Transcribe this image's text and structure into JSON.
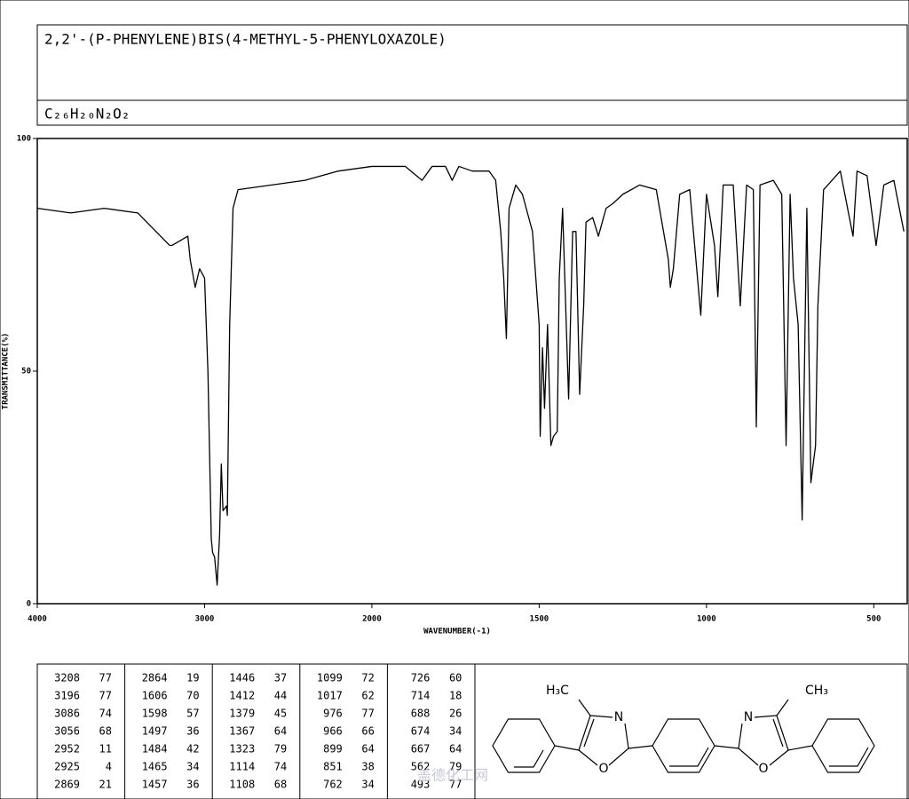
{
  "chart_data": {
    "type": "line",
    "title": "2,2'-(P-PHENYLENE)BIS(4-METHYL-5-PHENYLOXAZOLE)",
    "subtitle": "C₂₆H₂₀N₂O₂",
    "x_label": "WAVENUMBER(-1)",
    "y_label": "TRANSMITTANCE(%)",
    "x": [
      4000,
      3800,
      3600,
      3400,
      3208,
      3196,
      3100,
      3086,
      3056,
      3030,
      3000,
      2980,
      2960,
      2952,
      2940,
      2925,
      2910,
      2900,
      2890,
      2869,
      2864,
      2850,
      2830,
      2800,
      2600,
      2400,
      2200,
      2000,
      1900,
      1850,
      1820,
      1780,
      1760,
      1740,
      1700,
      1650,
      1630,
      1615,
      1606,
      1598,
      1590,
      1570,
      1550,
      1520,
      1500,
      1497,
      1490,
      1484,
      1475,
      1465,
      1457,
      1446,
      1440,
      1430,
      1412,
      1400,
      1390,
      1379,
      1367,
      1360,
      1340,
      1323,
      1300,
      1280,
      1250,
      1200,
      1150,
      1114,
      1108,
      1099,
      1080,
      1050,
      1017,
      1000,
      976,
      966,
      950,
      920,
      899,
      880,
      860,
      851,
      840,
      800,
      775,
      762,
      750,
      740,
      726,
      714,
      700,
      688,
      674,
      667,
      650,
      600,
      562,
      550,
      520,
      493,
      470,
      440,
      410
    ],
    "values": [
      85,
      84,
      85,
      84,
      77,
      77,
      79,
      74,
      68,
      72,
      70,
      50,
      14,
      11,
      10,
      4,
      15,
      30,
      20,
      21,
      19,
      60,
      85,
      89,
      90,
      91,
      93,
      94,
      94,
      91,
      94,
      94,
      91,
      94,
      93,
      93,
      91,
      80,
      70,
      57,
      85,
      90,
      88,
      80,
      60,
      36,
      55,
      42,
      60,
      34,
      36,
      37,
      70,
      85,
      44,
      80,
      80,
      45,
      64,
      82,
      83,
      79,
      85,
      86,
      88,
      90,
      89,
      74,
      68,
      72,
      88,
      89,
      62,
      88,
      77,
      66,
      90,
      90,
      64,
      90,
      89,
      38,
      90,
      91,
      88,
      34,
      88,
      70,
      60,
      18,
      85,
      26,
      34,
      64,
      89,
      93,
      79,
      93,
      92,
      77,
      90,
      91,
      80
    ],
    "color": "#000000",
    "xlim": [
      4000,
      400
    ],
    "xticks": [
      4000,
      3000,
      2000,
      1500,
      1000,
      500
    ],
    "ylim": [
      0,
      100
    ],
    "yticks": [
      0,
      50,
      100
    ]
  },
  "peak_table": {
    "rows": [
      [
        3208,
        77,
        2864,
        19,
        1446,
        37,
        1099,
        72,
        726,
        60
      ],
      [
        3196,
        77,
        1606,
        70,
        1412,
        44,
        1017,
        62,
        714,
        18
      ],
      [
        3086,
        74,
        1598,
        57,
        1379,
        45,
        976,
        77,
        688,
        26
      ],
      [
        3056,
        68,
        1497,
        36,
        1367,
        64,
        966,
        66,
        674,
        34
      ],
      [
        2952,
        11,
        1484,
        42,
        1323,
        79,
        899,
        64,
        667,
        64
      ],
      [
        2925,
        4,
        1465,
        34,
        1114,
        74,
        851,
        38,
        562,
        79
      ],
      [
        2869,
        21,
        1457,
        36,
        1108,
        68,
        762,
        34,
        493,
        77
      ]
    ]
  },
  "structure": {
    "labels": [
      "H₃C",
      "N",
      "O",
      "N",
      "O",
      "CH₃"
    ]
  },
  "watermark": "盖德化工网"
}
